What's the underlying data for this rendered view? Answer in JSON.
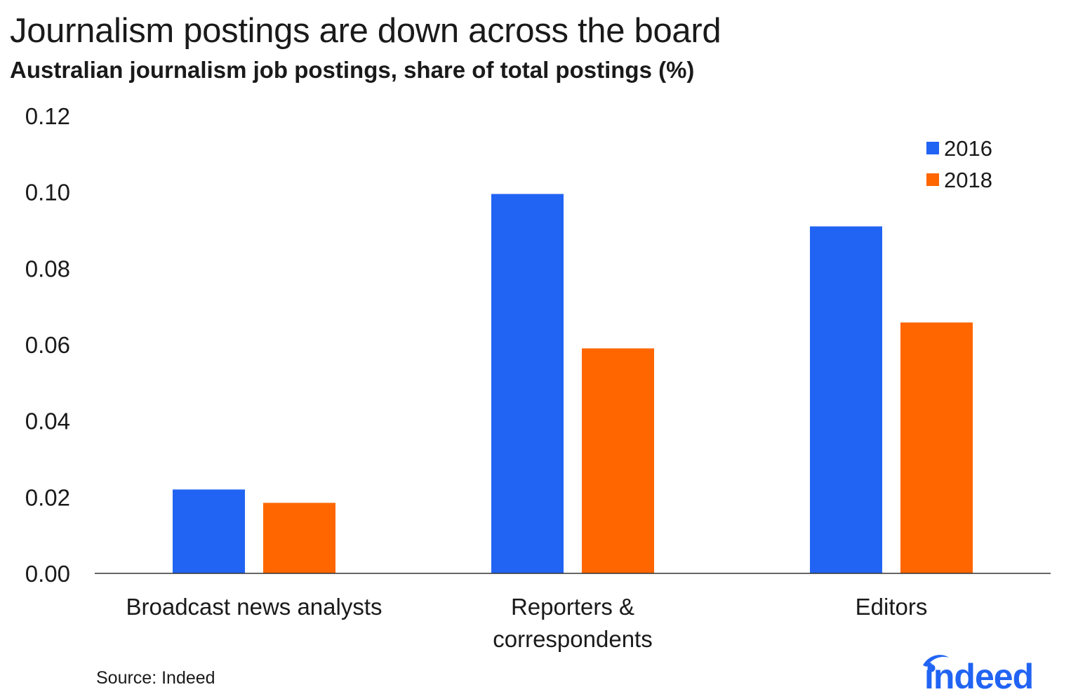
{
  "title": "Journalism postings are down across the board",
  "subtitle": "Australian journalism job postings, share of total postings (%)",
  "source": "Source: Indeed",
  "logo_text": "indeed",
  "colors": {
    "s2016": "#2164f3",
    "s2018": "#ff6600",
    "axis": "#333333",
    "text": "#1a1a1a"
  },
  "chart_data": {
    "type": "bar",
    "title": "Journalism postings are down across the board",
    "subtitle": "Australian journalism job postings, share of total postings (%)",
    "xlabel": "",
    "ylabel": "",
    "categories": [
      "Broadcast news analysts",
      "Reporters & correspondents",
      "Editors"
    ],
    "category_lines": [
      [
        "Broadcast news analysts"
      ],
      [
        "Reporters &",
        "correspondents"
      ],
      [
        "Editors"
      ]
    ],
    "series": [
      {
        "name": "2016",
        "color": "#2164f3",
        "values": [
          0.022,
          0.0995,
          0.091
        ]
      },
      {
        "name": "2018",
        "color": "#ff6600",
        "values": [
          0.0185,
          0.059,
          0.0658
        ]
      }
    ],
    "ylim": [
      0,
      0.12
    ],
    "yticks": [
      "0.00",
      "0.02",
      "0.04",
      "0.06",
      "0.08",
      "0.10",
      "0.12"
    ],
    "grid": false,
    "legend_position": "top-right"
  }
}
